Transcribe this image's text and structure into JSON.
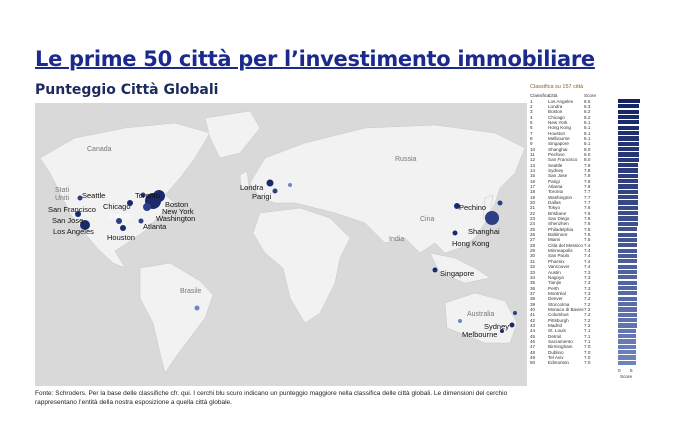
{
  "title": "Le prime 50 città per l’investimento immobiliare",
  "subtitle": "Punteggio Città Globali",
  "footer": "Fonte: Schroders. Per la base delle classifiche cfr. qui. I cerchi blu scuro indicano un punteggio maggiore nella classifica delle città globali. Le dimensioni del cerchio rappresentano l’entità della nostra esposizione a quella città globale.",
  "map": {
    "region_labels": [
      {
        "t": "Canada"
      },
      {
        "t": "Russia"
      },
      {
        "t": "Stati Uniti"
      },
      {
        "t": "Cina"
      },
      {
        "t": "India"
      },
      {
        "t": "Brasile"
      },
      {
        "t": "Australia"
      }
    ],
    "city_labels": [
      "Seattle",
      "San Francisco",
      "San Jose",
      "Los Angeles",
      "Chicago",
      "Toronto",
      "Boston",
      "New York",
      "Washington",
      "Dallas",
      "Houston",
      "Atlanta",
      "Londra",
      "Parigi",
      "Pechino",
      "Shanghai",
      "Hong Kong",
      "Singapore",
      "Sydney",
      "Melbourne"
    ],
    "marker_color_dark": "#1b2a6b",
    "marker_color_light": "#6f86c4"
  },
  "ranking": {
    "header": "Classifica su 157 città",
    "col_rank": "Classifica",
    "col_city": "Città",
    "col_score": "Score",
    "axis_ticks": [
      "0",
      "5"
    ],
    "axis_label": "Score",
    "rows": [
      [
        "1",
        "Los Angeles",
        "8.5"
      ],
      [
        "2",
        "Londra",
        "8.3"
      ],
      [
        "3",
        "Boston",
        "8.2"
      ],
      [
        "4",
        "Chicago",
        "8.2"
      ],
      [
        "5",
        "New York",
        "8.1"
      ],
      [
        "6",
        "Hong Kong",
        "8.1"
      ],
      [
        "7",
        "Houston",
        "8.1"
      ],
      [
        "8",
        "Melbourne",
        "8.1"
      ],
      [
        "9",
        "Singapore",
        "8.1"
      ],
      [
        "10",
        "Shanghai",
        "8.0"
      ],
      [
        "11",
        "Pechino",
        "8.0"
      ],
      [
        "12",
        "San Francisco",
        "8.0"
      ],
      [
        "13",
        "Seattle",
        "7.9"
      ],
      [
        "14",
        "Sydney",
        "7.8"
      ],
      [
        "15",
        "San Jose",
        "7.8"
      ],
      [
        "16",
        "Parigi",
        "7.8"
      ],
      [
        "17",
        "Atlanta",
        "7.8"
      ],
      [
        "18",
        "Toronto",
        "7.7"
      ],
      [
        "19",
        "Washington",
        "7.7"
      ],
      [
        "20",
        "Dallas",
        "7.7"
      ],
      [
        "21",
        "Tokyo",
        "7.6"
      ],
      [
        "22",
        "Brisbane",
        "7.6"
      ],
      [
        "23",
        "San Diego",
        "7.6"
      ],
      [
        "24",
        "Shenzhen",
        "7.6"
      ],
      [
        "25",
        "Philadelphia",
        "7.5"
      ],
      [
        "26",
        "Baltimore",
        "7.5"
      ],
      [
        "27",
        "Miami",
        "7.5"
      ],
      [
        "28",
        "Città del Messico",
        "7.4"
      ],
      [
        "29",
        "Minneapolis",
        "7.4"
      ],
      [
        "30",
        "San Paolo",
        "7.4"
      ],
      [
        "31",
        "Phoenix",
        "7.4"
      ],
      [
        "32",
        "Vancouver",
        "7.4"
      ],
      [
        "33",
        "Austin",
        "7.3"
      ],
      [
        "34",
        "Nagoya",
        "7.3"
      ],
      [
        "35",
        "Tianjin",
        "7.3"
      ],
      [
        "36",
        "Perth",
        "7.3"
      ],
      [
        "37",
        "Montréal",
        "7.3"
      ],
      [
        "38",
        "Denver",
        "7.2"
      ],
      [
        "39",
        "Stoccolma",
        "7.2"
      ],
      [
        "40",
        "Monaco di Baviera",
        "7.2"
      ],
      [
        "41",
        "Columbus",
        "7.2"
      ],
      [
        "42",
        "Pittsburgh",
        "7.2"
      ],
      [
        "43",
        "Madrid",
        "7.2"
      ],
      [
        "44",
        "St. Louis",
        "7.1"
      ],
      [
        "45",
        "Detroit",
        "7.1"
      ],
      [
        "46",
        "Sacramento",
        "7.1"
      ],
      [
        "47",
        "Birmingham",
        "7.0"
      ],
      [
        "48",
        "Dublino",
        "7.0"
      ],
      [
        "49",
        "Tel Aviv",
        "7.0"
      ],
      [
        "50",
        "Edmonton",
        "7.0"
      ]
    ]
  }
}
